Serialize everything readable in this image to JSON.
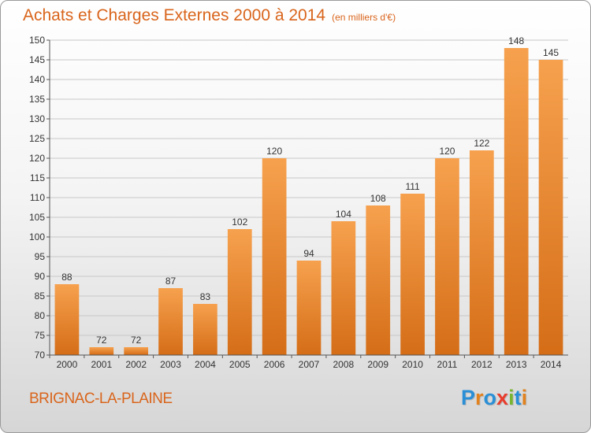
{
  "title": "Achats et Charges Externes 2000 à 2014",
  "unit": "(en milliers d'€)",
  "commune": "BRIGNAC-LA-PLAINE",
  "logo": {
    "text": "Proxiti",
    "letter_colors": [
      "#2a8fd6",
      "#e1821e",
      "#2a8fd6",
      "#e83c2c",
      "#7ab531",
      "#2a8fd6",
      "#e1821e"
    ]
  },
  "colors": {
    "bar_light": "#f6a14e",
    "bar_dark": "#d56d17",
    "grid": "#c8c8c8",
    "axis": "#555555",
    "label": "#333333"
  },
  "chart_data": {
    "type": "bar",
    "categories": [
      "2000",
      "2001",
      "2002",
      "2003",
      "2004",
      "2005",
      "2006",
      "2007",
      "2008",
      "2009",
      "2010",
      "2011",
      "2012",
      "2013",
      "2014"
    ],
    "values": [
      88,
      72,
      72,
      87,
      83,
      102,
      120,
      94,
      104,
      108,
      111,
      120,
      122,
      148,
      145
    ],
    "ylim": [
      70,
      150
    ],
    "yticks": [
      70,
      75,
      80,
      85,
      90,
      95,
      100,
      105,
      110,
      115,
      120,
      125,
      130,
      135,
      140,
      145,
      150
    ],
    "grid": true
  }
}
